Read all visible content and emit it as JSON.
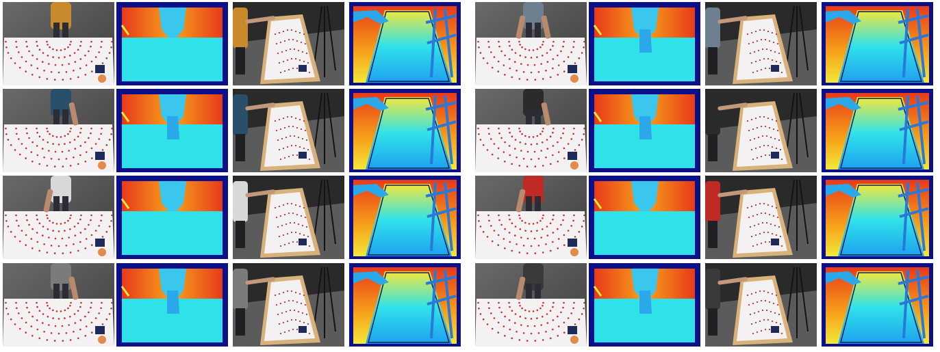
{
  "grid": {
    "rows": 4,
    "columns_per_half": 4,
    "halves": 2,
    "column_views": [
      "rgb-top",
      "depth-top",
      "rgb-side",
      "depth-side"
    ]
  },
  "samples": [
    {
      "half": "left",
      "row": 1,
      "shirt": "#c98a2c",
      "arm": "none",
      "depth_top_arm": false,
      "depth_side_arm": true
    },
    {
      "half": "left",
      "row": 2,
      "shirt": "#2a4f6a",
      "arm": "right",
      "depth_top_arm": true,
      "depth_side_arm": true
    },
    {
      "half": "left",
      "row": 3,
      "shirt": "#d8d8d8",
      "arm": "left",
      "depth_top_arm": false,
      "depth_side_arm": true
    },
    {
      "half": "left",
      "row": 4,
      "shirt": "#7b7b7b",
      "arm": "right",
      "depth_top_arm": true,
      "depth_side_arm": true
    },
    {
      "half": "right",
      "row": 1,
      "shirt": "#6e7f8f",
      "arm": "both",
      "depth_top_arm": true,
      "depth_side_arm": true
    },
    {
      "half": "right",
      "row": 2,
      "shirt": "#2b2b2b",
      "arm": "right",
      "depth_top_arm": true,
      "depth_side_arm": true
    },
    {
      "half": "right",
      "row": 3,
      "shirt": "#c02a25",
      "arm": "left",
      "depth_top_arm": false,
      "depth_side_arm": true
    },
    {
      "half": "right",
      "row": 4,
      "shirt": "#3a3a3a",
      "arm": "left",
      "depth_top_arm": true,
      "depth_side_arm": true
    }
  ],
  "colors": {
    "floor": "#5b5b5b",
    "paper": "#f4f1f2",
    "dot": "#c42f35",
    "table_wood": "#d8b27a",
    "depth_frame": "#0b0f88",
    "depth_far_red": "#e83a1a",
    "depth_far_orange": "#f7a21a",
    "depth_yellow": "#f3e83a",
    "depth_cyan": "#2fe2ea",
    "depth_mid": "#1fa0f0",
    "depth_blue": "#1a4ee0"
  }
}
